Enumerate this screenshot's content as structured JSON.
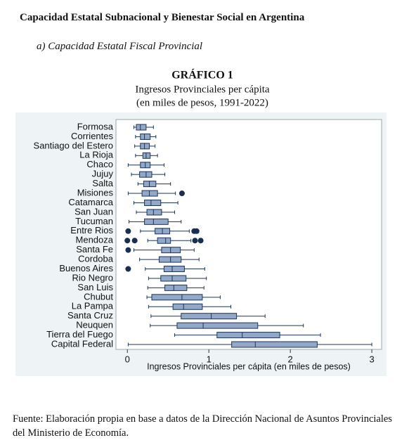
{
  "header": {
    "title": "Capacidad Estatal Subnacional y Bienestar Social en Argentina",
    "subtitle": "a) Capacidad Estatal Fiscal Provincial"
  },
  "chart_data": {
    "type": "boxplot",
    "label": "GRÁFICO 1",
    "title": "Ingresos Provinciales per cápita",
    "subtitle": "(en miles de pesos, 1991-2022)",
    "categories": [
      "Formosa",
      "Corrientes",
      "Santiago del Estero",
      "La Rioja",
      "Chaco",
      "Jujuy",
      "Salta",
      "Misiones",
      "Catamarca",
      "San Juan",
      "Tucuman",
      "Entre Rios",
      "Mendoza",
      "Santa Fe",
      "Cordoba",
      "Buenos Aires",
      "Rio Negro",
      "San Luis",
      "Chubut",
      "La Pampa",
      "Santa Cruz",
      "Neuquen",
      "Tierra del Fuego",
      "Capital Federal"
    ],
    "whisker_low": [
      0.08,
      0.1,
      0.09,
      0.1,
      0.01,
      0.05,
      0.13,
      0.01,
      0.08,
      0.11,
      0.02,
      0.16,
      0.25,
      0.08,
      0.15,
      0.22,
      0.26,
      0.25,
      0.24,
      0.26,
      0.29,
      0.28,
      0.58,
      0.01
    ],
    "q1": [
      0.11,
      0.16,
      0.16,
      0.19,
      0.16,
      0.15,
      0.2,
      0.18,
      0.21,
      0.24,
      0.21,
      0.34,
      0.37,
      0.42,
      0.39,
      0.45,
      0.41,
      0.46,
      0.3,
      0.56,
      0.66,
      0.61,
      1.1,
      1.28
    ],
    "median": [
      0.16,
      0.21,
      0.21,
      0.23,
      0.22,
      0.23,
      0.27,
      0.27,
      0.29,
      0.32,
      0.32,
      0.43,
      0.47,
      0.53,
      0.53,
      0.55,
      0.55,
      0.57,
      0.67,
      0.69,
      1.03,
      0.93,
      1.41,
      1.57
    ],
    "q3": [
      0.23,
      0.28,
      0.27,
      0.28,
      0.28,
      0.3,
      0.35,
      0.37,
      0.41,
      0.42,
      0.5,
      0.52,
      0.53,
      0.65,
      0.66,
      0.7,
      0.72,
      0.73,
      0.92,
      0.92,
      1.34,
      1.6,
      1.87,
      2.33
    ],
    "whisker_high": [
      0.32,
      0.35,
      0.34,
      0.37,
      0.45,
      0.46,
      0.53,
      0.59,
      0.62,
      0.58,
      0.66,
      0.76,
      0.78,
      0.82,
      0.88,
      0.95,
      0.97,
      0.94,
      1.14,
      1.27,
      1.69,
      2.16,
      2.37,
      3.0
    ],
    "outliers": [
      [],
      [],
      [],
      [],
      [],
      [],
      [],
      [
        0.67
      ],
      [],
      [],
      [],
      [
        0.01,
        0.82,
        0.85
      ],
      [
        0.0,
        0.09,
        0.83,
        0.9
      ],
      [
        0.01
      ],
      [],
      [
        0.01
      ],
      [],
      [],
      [],
      [],
      [],
      [],
      [],
      []
    ],
    "xlabel": "Ingresos Provinciales per cápita (en miles de pesos)",
    "xlim": [
      -0.14,
      3.12
    ],
    "xticks": [
      0,
      1,
      2,
      3
    ],
    "box_color": "#93a8c8",
    "line_color": "#1c3557",
    "outlier_color": "#1a2e50"
  },
  "footer": {
    "source": "Fuente: Elaboración propia en base a datos de la Dirección Nacional de Asuntos Provinciales del Ministerio de Economía."
  }
}
